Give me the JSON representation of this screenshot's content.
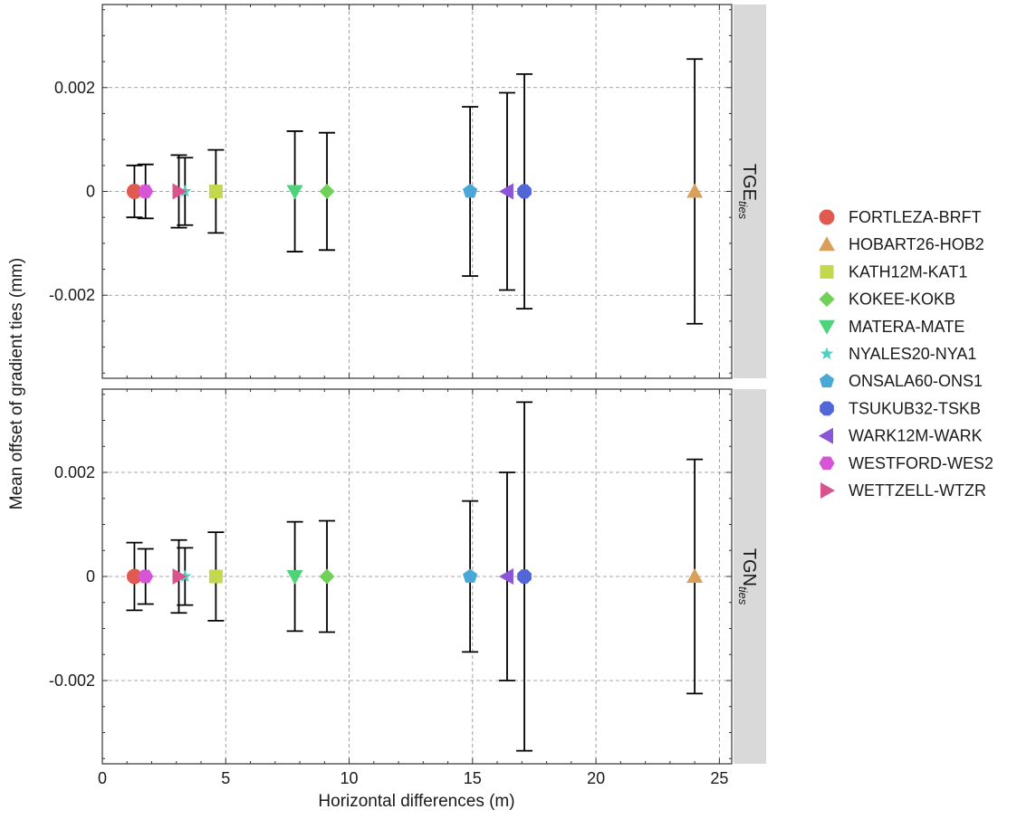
{
  "chart_data": {
    "type": "scatter",
    "xlabel": "Horizontal differences (m)",
    "ylabel": "Mean offset of gradient ties (mm)",
    "xlim": [
      0,
      25.5
    ],
    "ylim": [
      -0.0036,
      0.0036
    ],
    "x_ticks": [
      0,
      5,
      10,
      15,
      20,
      25
    ],
    "x_tick_labels": [
      "0",
      "5",
      "10",
      "15",
      "20",
      "25"
    ],
    "y_ticks": [
      -0.002,
      0,
      0.002
    ],
    "y_tick_labels": [
      "-0.002",
      "0",
      "0.002"
    ],
    "grid": true,
    "legend_position": "right",
    "panels": [
      {
        "strip_main": "TGE",
        "strip_sub": "ties"
      },
      {
        "strip_main": "TGN",
        "strip_sub": "ties"
      }
    ],
    "series": [
      {
        "name": "FORTLEZA-BRFT",
        "marker": "circle",
        "color": "#e05a4f",
        "x": 1.3,
        "y": [
          0,
          0
        ],
        "err": [
          0.0005,
          0.00065
        ]
      },
      {
        "name": "HOBART26-HOB2",
        "marker": "triangle-up",
        "color": "#d9a05b",
        "x": 24.0,
        "y": [
          0,
          0
        ],
        "err": [
          0.00255,
          0.00225
        ]
      },
      {
        "name": "KATH12M-KAT1",
        "marker": "square",
        "color": "#c5d84d",
        "x": 4.6,
        "y": [
          0,
          0
        ],
        "err": [
          0.0008,
          0.00085
        ]
      },
      {
        "name": "KOKEE-KOKB",
        "marker": "diamond",
        "color": "#6fd158",
        "x": 9.1,
        "y": [
          0,
          0
        ],
        "err": [
          0.00113,
          0.00107
        ]
      },
      {
        "name": "MATERA-MATE",
        "marker": "triangle-down",
        "color": "#4ed27a",
        "x": 7.8,
        "y": [
          0,
          0
        ],
        "err": [
          0.00116,
          0.00105
        ]
      },
      {
        "name": "NYALES20-NYA1",
        "marker": "star",
        "color": "#4fd1c1",
        "x": 3.35,
        "y": [
          0,
          0
        ],
        "err": [
          0.00065,
          0.00055
        ]
      },
      {
        "name": "ONSALA60-ONS1",
        "marker": "pentagon",
        "color": "#4aa8d8",
        "x": 14.9,
        "y": [
          0,
          0
        ],
        "err": [
          0.00163,
          0.00145
        ]
      },
      {
        "name": "TSUKUB32-TSKB",
        "marker": "octagon",
        "color": "#5366d8",
        "x": 17.1,
        "y": [
          0,
          0
        ],
        "err": [
          0.00226,
          0.00335
        ]
      },
      {
        "name": "WARK12M-WARK",
        "marker": "triangle-left",
        "color": "#8b55d6",
        "x": 16.4,
        "y": [
          0,
          0
        ],
        "err": [
          0.0019,
          0.002
        ]
      },
      {
        "name": "WESTFORD-WES2",
        "marker": "hexagon",
        "color": "#d655d6",
        "x": 1.75,
        "y": [
          0,
          0
        ],
        "err": [
          0.00052,
          0.00053
        ]
      },
      {
        "name": "WETTZELL-WTZR",
        "marker": "triangle-right",
        "color": "#d9548e",
        "x": 3.1,
        "y": [
          0,
          0
        ],
        "err": [
          0.0007,
          0.0007
        ]
      }
    ]
  }
}
